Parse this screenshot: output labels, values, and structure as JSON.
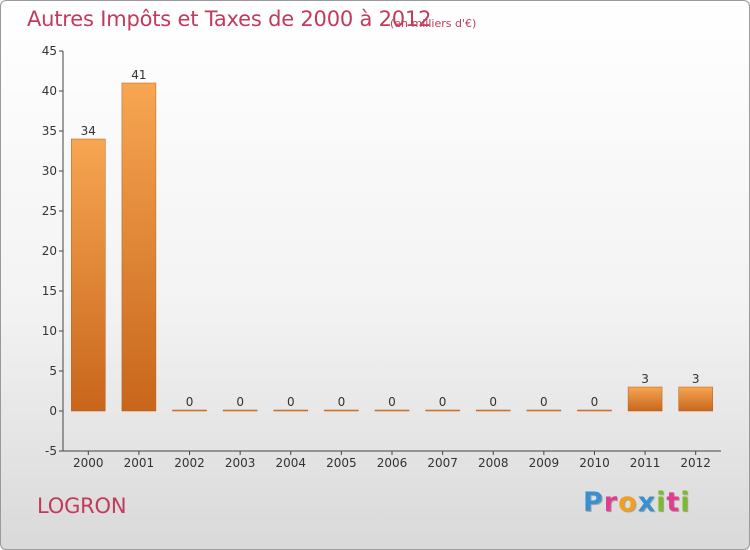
{
  "header": {
    "title": "Autres Impôts et Taxes de 2000 à 2012",
    "subtitle": "(en milliers d'€)"
  },
  "footer": {
    "commune": "LOGRON",
    "logo_letters": [
      "P",
      "r",
      "o",
      "x",
      "i",
      "t",
      "i"
    ]
  },
  "colors": {
    "title": "#c23a5c",
    "bar_top": "#f7a652",
    "bar_bottom": "#c8661c",
    "logo": [
      "#3a8fd0",
      "#e23b8f",
      "#f0a020",
      "#3a8fd0",
      "#7dbb2d",
      "#e23b8f",
      "#7dbb2d"
    ]
  },
  "chart_data": {
    "type": "bar",
    "title": "Autres Impôts et Taxes de 2000 à 2012",
    "subtitle": "(en milliers d'€)",
    "xlabel": "",
    "ylabel": "",
    "categories": [
      "2000",
      "2001",
      "2002",
      "2003",
      "2004",
      "2005",
      "2006",
      "2007",
      "2008",
      "2009",
      "2010",
      "2011",
      "2012"
    ],
    "values": [
      34,
      41,
      0,
      0,
      0,
      0,
      0,
      0,
      0,
      0,
      0,
      3,
      3
    ],
    "ylim": [
      -5,
      45
    ],
    "yticks": [
      -5,
      0,
      5,
      10,
      15,
      20,
      25,
      30,
      35,
      40,
      45
    ],
    "grid": false,
    "legend": "none"
  }
}
